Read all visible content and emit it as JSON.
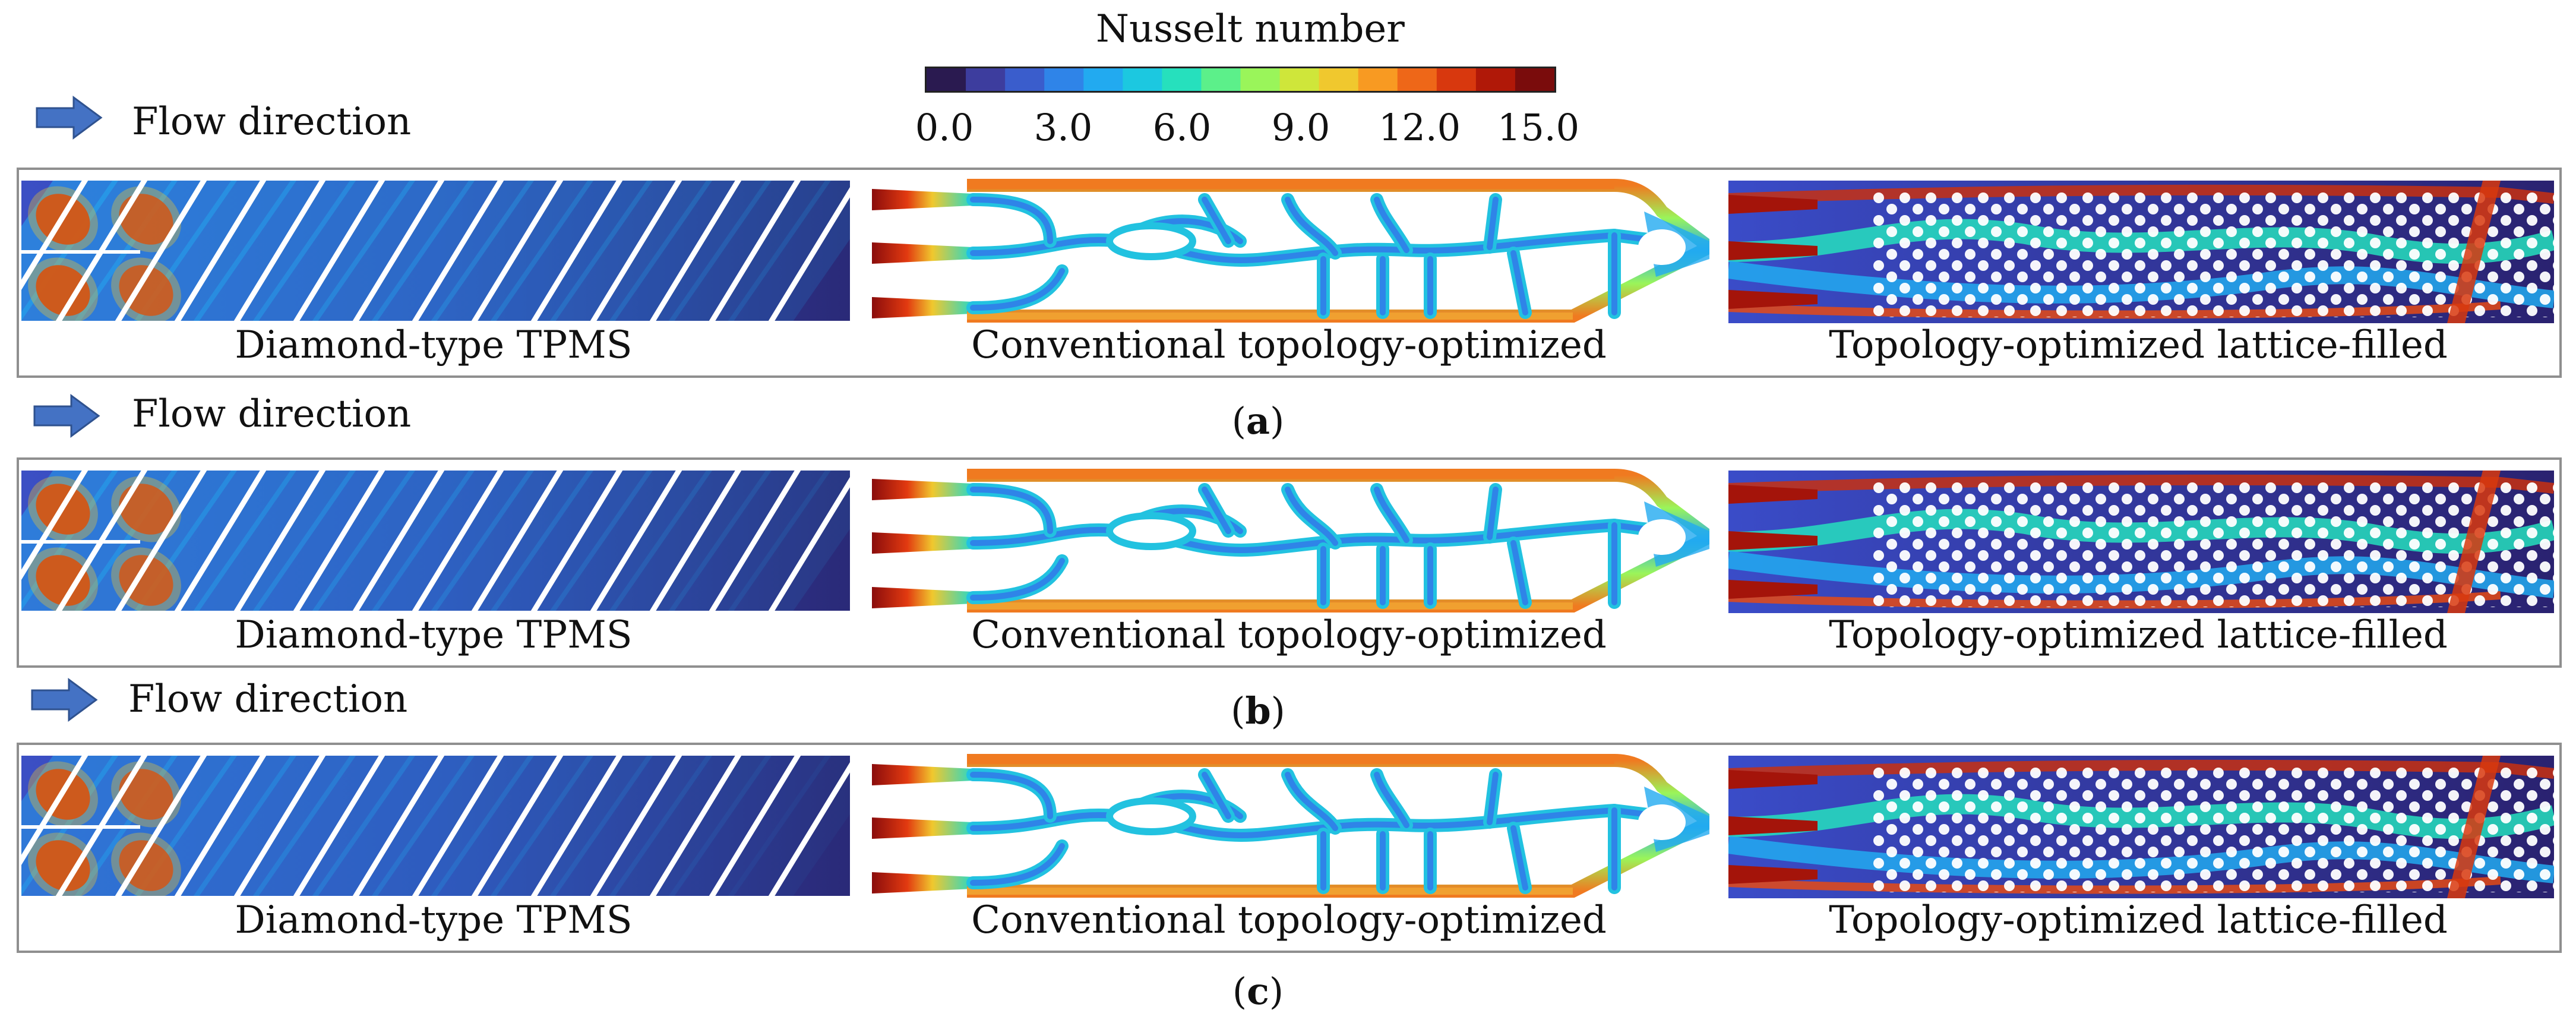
{
  "colorbar": {
    "title": "Nusselt number",
    "ticks": [
      "0.0",
      "3.0",
      "6.0",
      "9.0",
      "12.0",
      "15.0"
    ],
    "range": [
      0.0,
      15.0
    ],
    "colors": [
      "#2a1a50",
      "#3d3d9e",
      "#3a5dcc",
      "#2f84e8",
      "#22aaf0",
      "#1cc8e0",
      "#26e0bd",
      "#5cf08a",
      "#9af55a",
      "#cfe63a",
      "#f0c82e",
      "#f89a22",
      "#ee6718",
      "#d8380e",
      "#b01808",
      "#7a0c0c"
    ]
  },
  "flow_direction_label": "Flow direction",
  "panels": [
    {
      "label": "a",
      "captions": [
        "Diamond-type TPMS",
        "Conventional topology-optimized",
        "Topology-optimized lattice-filled"
      ]
    },
    {
      "label": "b",
      "captions": [
        "Diamond-type TPMS",
        "Conventional topology-optimized",
        "Topology-optimized lattice-filled"
      ]
    },
    {
      "label": "c",
      "captions": [
        "Diamond-type TPMS",
        "Conventional topology-optimized",
        "Topology-optimized lattice-filled"
      ]
    }
  ]
}
